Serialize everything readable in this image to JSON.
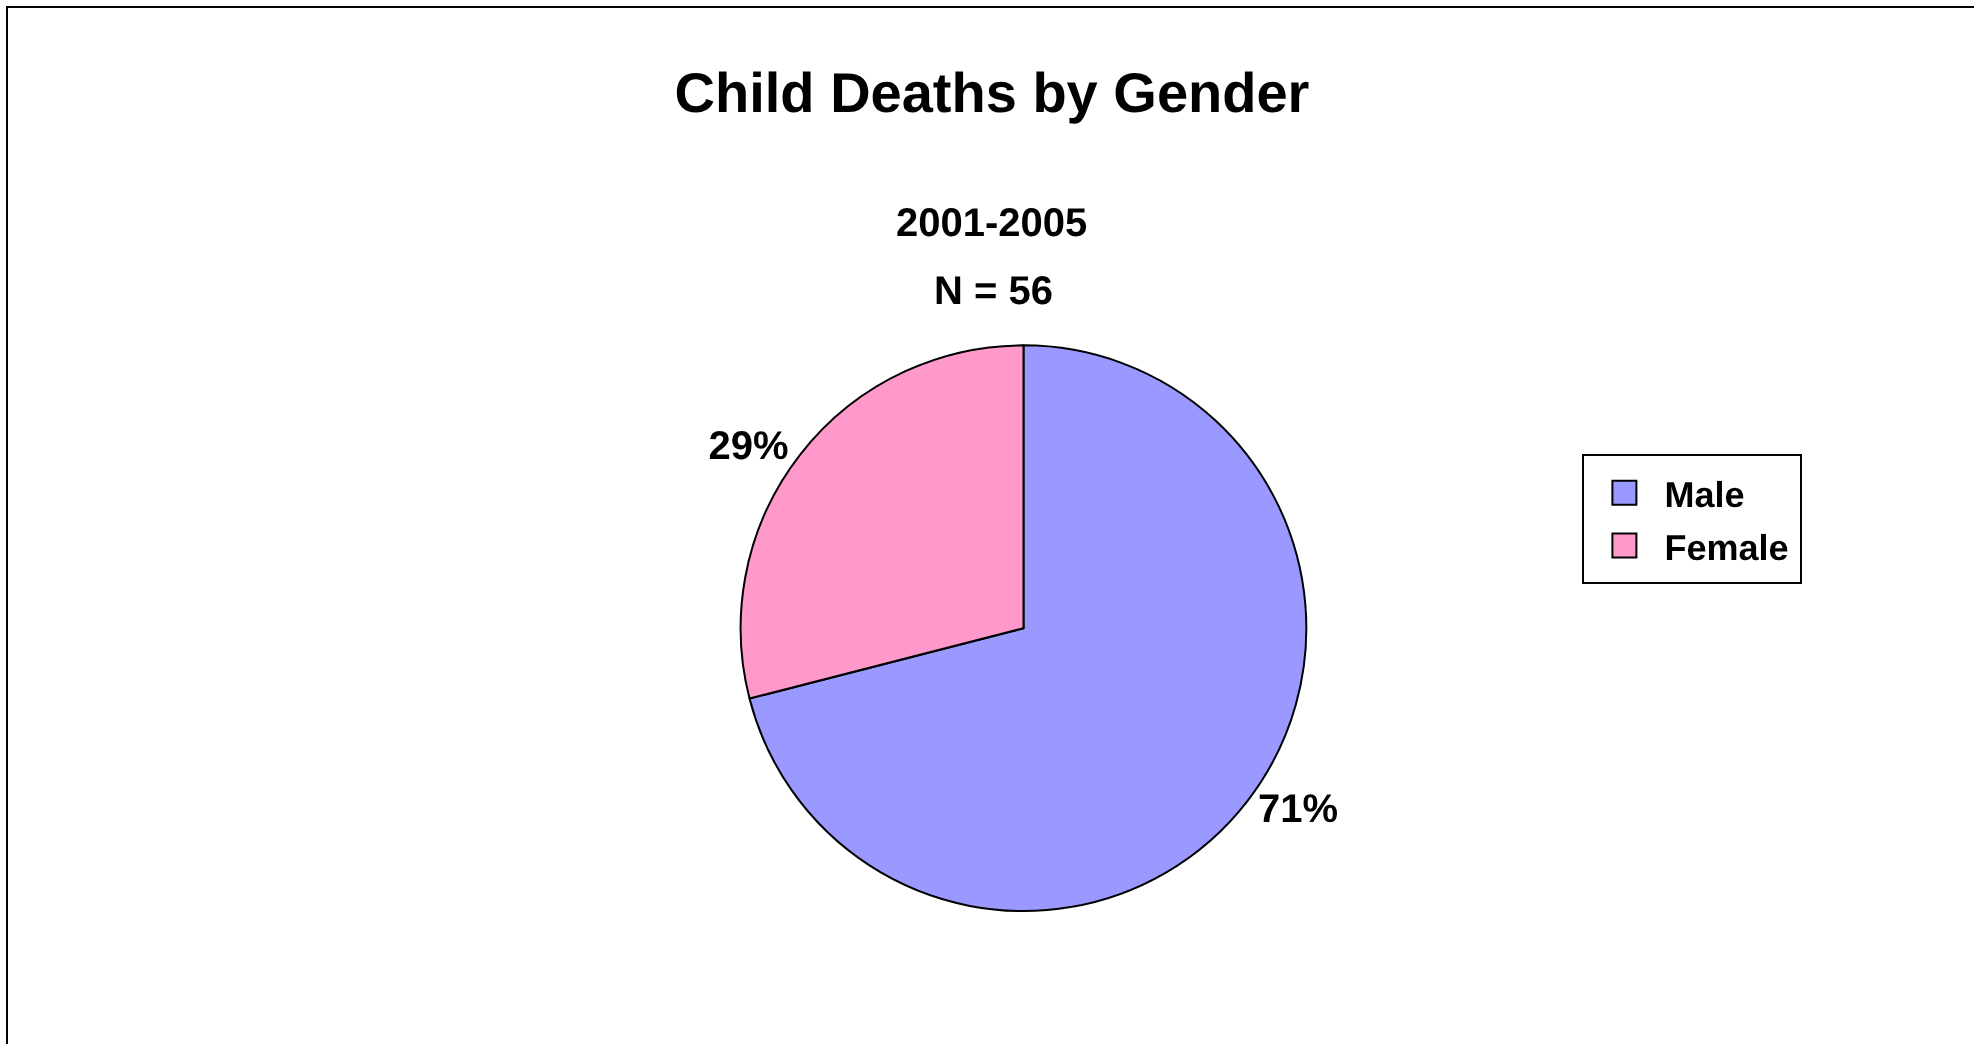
{
  "chart_data": {
    "type": "pie",
    "title": "Child Deaths by Gender",
    "subtitle": "2001-2005",
    "annotations": [
      "N = 56"
    ],
    "categories": [
      "Male",
      "Female"
    ],
    "values": [
      71,
      29
    ],
    "value_labels": [
      "71%",
      "29%"
    ],
    "colors": [
      "#9999ff",
      "#ff99cc"
    ],
    "legend": "right"
  }
}
